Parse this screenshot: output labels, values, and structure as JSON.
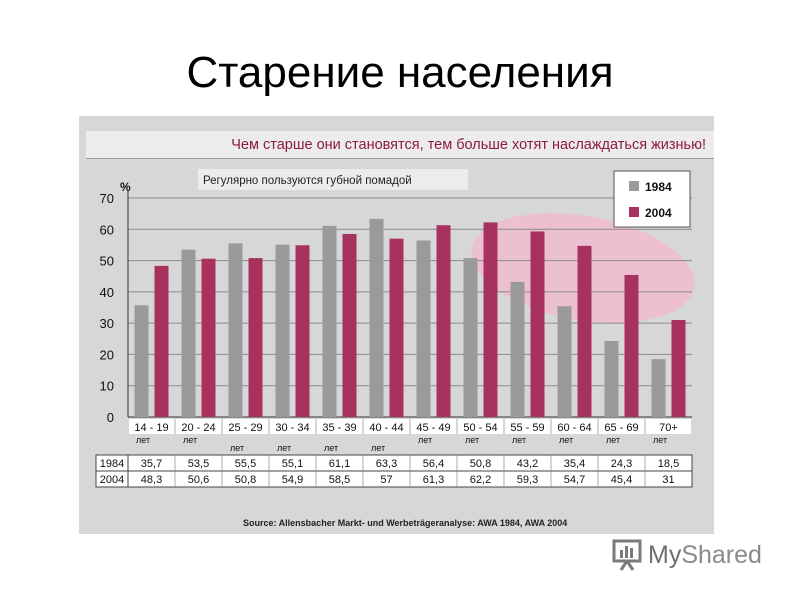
{
  "slide": {
    "title": "Старение населения"
  },
  "panel": {
    "headline": "Чем старше они становятся, тем больше хотят наслаждаться жизнью!",
    "source": "Source: Allensbacher Markt- und Werbeträgeranalyse: AWA 1984, AWA 2004"
  },
  "logo": {
    "text_my": "My",
    "text_shared": "Shared"
  },
  "colors": {
    "series_1984": "#9a9a9a",
    "series_2004": "#a8325f",
    "highlight": "#ecc0d0",
    "panel": "#d7d7d7"
  },
  "chart_data": {
    "type": "bar",
    "subtitle": "Регулярно пользуются губной помадой",
    "ylabel": "%",
    "ylim": [
      0,
      70
    ],
    "yticks": [
      0,
      10,
      20,
      30,
      40,
      50,
      60,
      70
    ],
    "grid": true,
    "legend_position": "top-right",
    "categories": [
      "14 - 19",
      "20 - 24",
      "25 - 29",
      "30 - 34",
      "35 - 39",
      "40 - 44",
      "45 - 49",
      "50 - 54",
      "55 - 59",
      "60 - 64",
      "65 - 69",
      "70+"
    ],
    "category_unit": "лет",
    "series": [
      {
        "name": "1984",
        "values": [
          35.7,
          53.5,
          55.5,
          55.1,
          61.1,
          63.3,
          56.4,
          50.8,
          43.2,
          35.4,
          24.3,
          18.5
        ],
        "labels": [
          "35,7",
          "53,5",
          "55,5",
          "55,1",
          "61,1",
          "63,3",
          "56,4",
          "50,8",
          "43,2",
          "35,4",
          "24,3",
          "18,5"
        ]
      },
      {
        "name": "2004",
        "values": [
          48.3,
          50.6,
          50.8,
          54.9,
          58.5,
          57,
          61.3,
          62.2,
          59.3,
          54.7,
          45.4,
          31
        ],
        "labels": [
          "48,3",
          "50,6",
          "50,8",
          "54,9",
          "58,5",
          "57",
          "61,3",
          "62,2",
          "59,3",
          "54,7",
          "45,4",
          "31"
        ]
      }
    ]
  }
}
